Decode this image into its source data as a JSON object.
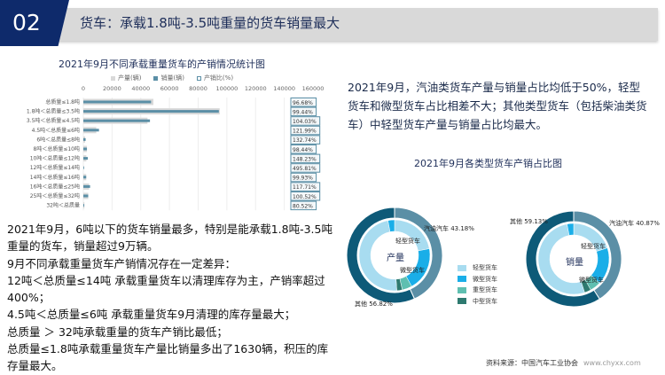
{
  "header": {
    "number": "02",
    "title": "货车：承载1.8吨-3.5吨重量的货车销量最大"
  },
  "colors": {
    "navy": "#0e2a6b",
    "production": "#d9d9d9",
    "sales": "#5b8fa6",
    "gasoline": "#5b8fa6",
    "other": "#0e5a78",
    "light": "#a8dcf0",
    "micro": "#1aaee8",
    "heavy": "#5fbfb0",
    "medium": "#2e7a70"
  },
  "chart_data": [
    {
      "type": "bar",
      "orientation": "horizontal",
      "title": "2021年9月不同承载重量货车的产销情况统计图",
      "legend": [
        "产量(辆)",
        "销量(辆)",
        "产销比(%)"
      ],
      "legend_position": "top",
      "xlim": [
        0,
        160000
      ],
      "xticks": [
        "0",
        "20000",
        "40000",
        "60000",
        "80000",
        "100000",
        "120000",
        "140000",
        "160000"
      ],
      "categories": [
        "总质量≤1.8吨",
        "1.8吨＜总质量≤3.5吨",
        "3.5吨＜总质量≤4.5吨",
        "4.5吨＜总质量≤6吨",
        "6吨＜总质量≤8吨",
        "8吨＜总质量≤10吨",
        "10吨＜总质量≤12吨",
        "12吨＜总质量≤14吨",
        "14吨＜总质量≤16吨",
        "16吨＜总质量≤25吨",
        "25吨＜总质量≤32吨",
        "32吨＜总质量"
      ],
      "series": [
        {
          "name": "产量(辆)",
          "values": [
            48800,
            95000,
            44700,
            9000,
            1200,
            2500,
            2100,
            100,
            2000,
            4000,
            3400,
            700
          ]
        },
        {
          "name": "销量(辆)",
          "values": [
            47200,
            94400,
            46400,
            10900,
            1600,
            2500,
            3100,
            500,
            2000,
            4700,
            3400,
            600
          ]
        }
      ],
      "ratio_labels": [
        "96.68%",
        "99.44%",
        "104.03%",
        "121.99%",
        "132.74%",
        "98.44%",
        "148.23%",
        "495.81%",
        "99.93%",
        "117.71%",
        "100.52%",
        "80.52%"
      ]
    },
    {
      "type": "pie",
      "subtype": "donut",
      "title": "2021年9月各类型货车产销占比图",
      "legend": [
        "轻型货车",
        "微型货车",
        "重型货车",
        "中型货车"
      ],
      "charts": [
        {
          "center": "产量",
          "outer": [
            {
              "label": "汽油汽车",
              "value": 43.18,
              "text": "汽油汽车 43.18%"
            },
            {
              "label": "其他",
              "value": 56.82,
              "text": "其他 56.82%"
            }
          ],
          "inner": [
            {
              "type": "轻型货车",
              "value": 22
            },
            {
              "type": "微型货车",
              "value": 20
            },
            {
              "type": "重型货车",
              "value": 4.5
            },
            {
              "type": "中型货车",
              "value": 2.5
            },
            {
              "type": "轻型货车",
              "value": 48
            },
            {
              "type": "微型货车",
              "value": 3
            }
          ],
          "inner_labels": [
            "轻型货车",
            "微型货车"
          ]
        },
        {
          "center": "销量",
          "outer": [
            {
              "label": "汽油汽车",
              "value": 40.87,
              "text": "汽油汽车 40.87%"
            },
            {
              "label": "其他",
              "value": 59.13,
              "text": "其他 59.13%"
            }
          ],
          "inner": [
            {
              "type": "轻型货车",
              "value": 20
            },
            {
              "type": "微型货车",
              "value": 17
            },
            {
              "type": "重型货车",
              "value": 5
            },
            {
              "type": "中型货车",
              "value": 3
            },
            {
              "type": "轻型货车",
              "value": 52
            },
            {
              "type": "微型货车",
              "value": 3
            }
          ],
          "inner_labels": [
            "轻型货车",
            "微型货车"
          ]
        }
      ]
    }
  ],
  "left_text": [
    "2021年9月，6吨以下的货车销量最多，特别是能承载1.8吨-3.5吨重量的货车，销量超过9万辆。",
    "9月不同承载重量货车产销情况存在一定差异：",
    "12吨＜总质量≤14吨 承载重量货车以清理库存为主，产销率超过400%；",
    "4.5吨＜总质量≤6吨 承载重量货车9月清理的库存量最大；",
    "总质量 ＞ 32吨承载重量的货车产销比最低；",
    "总质量≤1.8吨承载重量货车产量比销量多出了1630辆，积压的库存量最大。"
  ],
  "right_text": "2021年9月，汽油类货车产量与销量占比均低于50%，轻型货车和微型货车占比相差不大；其他类型货车（包括柴油类货车）中轻型货车产量与销量占比均最大。",
  "source": {
    "label": "资料来源：中国汽车工业协会",
    "site": "www.chyxx.com"
  }
}
